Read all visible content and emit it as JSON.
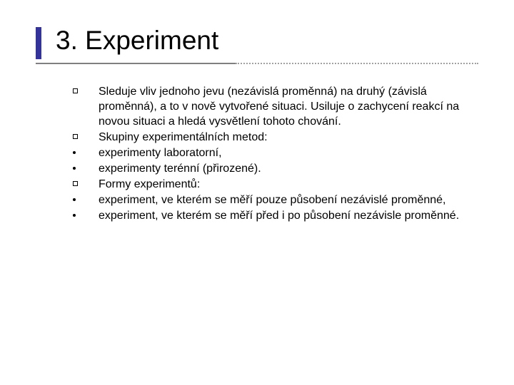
{
  "slide": {
    "title": "3. Experiment",
    "title_fontsize": 37,
    "title_color": "#000000",
    "accent_bar_color": "#333399",
    "accent_bar_width": 8,
    "accent_bar_height": 45,
    "underline": {
      "solid_width": 280,
      "total_width": 620,
      "solid_color": "#808080",
      "dotted_color": "#a0a0a0"
    },
    "body_fontsize": 16,
    "body_line_height": 21,
    "body_color": "#000000",
    "background_color": "#ffffff",
    "items": [
      {
        "bullet": "square",
        "text": "Sleduje vliv jednoho jevu (nezávislá proměnná) na druhý (závislá proměnná), a to v nově vytvořené situaci. Usiluje o zachycení reakcí na novou situaci a hledá vysvětlení tohoto chování."
      },
      {
        "bullet": "square",
        "text": "Skupiny experimentálních metod:"
      },
      {
        "bullet": "dot",
        "text": "experimenty laboratorní,"
      },
      {
        "bullet": "dot",
        "text": "experimenty terénní (přirozené)."
      },
      {
        "bullet": "square",
        "text": "Formy experimentů:"
      },
      {
        "bullet": "dot",
        "text": "experiment, ve kterém se měří pouze působení nezávislé proměnné,"
      },
      {
        "bullet": "dot",
        "text": "experiment, ve kterém se měří před i po působení nezávisle proměnné."
      }
    ]
  }
}
